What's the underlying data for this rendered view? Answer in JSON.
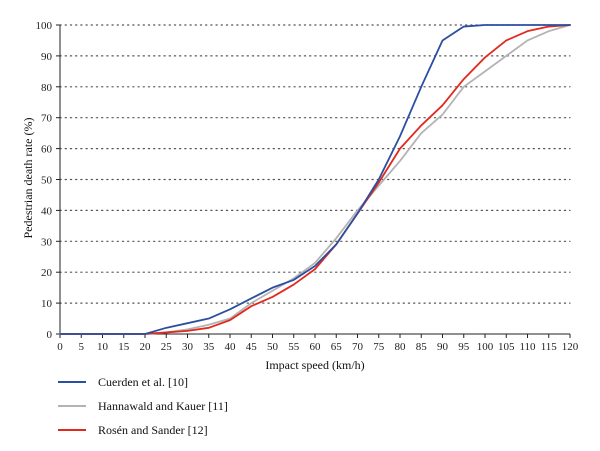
{
  "chart_data": {
    "type": "line",
    "xlabel": "Impact speed (km/h)",
    "ylabel": "Pedestrian death rate (%)",
    "xlim": [
      0,
      120
    ],
    "ylim": [
      0,
      100
    ],
    "x_ticks": [
      0,
      5,
      10,
      15,
      20,
      25,
      30,
      35,
      40,
      45,
      50,
      55,
      60,
      65,
      70,
      75,
      80,
      85,
      90,
      95,
      100,
      105,
      110,
      115,
      120
    ],
    "y_ticks": [
      0,
      10,
      20,
      30,
      40,
      50,
      60,
      70,
      80,
      90,
      100
    ],
    "grid": "horizontal dotted",
    "legend_position": "bottom-left",
    "series": [
      {
        "name": "Cuerden et al. [10]",
        "color": "#2b4fa0",
        "x": [
          0,
          5,
          10,
          15,
          20,
          25,
          30,
          35,
          40,
          45,
          50,
          55,
          60,
          65,
          70,
          75,
          80,
          85,
          90,
          95,
          100,
          105,
          110,
          115,
          120
        ],
        "values": [
          0,
          0,
          0,
          0,
          0,
          2,
          3.5,
          5,
          8,
          11.5,
          15,
          17.5,
          22,
          29,
          39,
          50,
          64,
          80,
          95,
          99.5,
          100,
          100,
          100,
          100,
          100
        ]
      },
      {
        "name": "Hannawald and Kauer [11]",
        "color": "#b3b3b3",
        "x": [
          0,
          5,
          10,
          15,
          20,
          25,
          30,
          35,
          40,
          45,
          50,
          55,
          60,
          65,
          70,
          75,
          80,
          85,
          90,
          95,
          100,
          105,
          110,
          115,
          120
        ],
        "values": [
          0,
          0,
          0,
          0,
          0,
          0.5,
          1.5,
          3,
          5,
          10,
          14,
          18,
          23,
          31,
          40,
          48,
          56,
          65,
          71,
          80,
          85,
          90,
          95,
          98,
          100
        ]
      },
      {
        "name": "Rosén and Sander [12]",
        "color": "#e02a1f",
        "x": [
          0,
          5,
          10,
          15,
          20,
          25,
          30,
          35,
          40,
          45,
          50,
          55,
          60,
          65,
          70,
          75,
          80,
          85,
          90,
          95,
          100,
          105,
          110,
          115,
          120
        ],
        "values": [
          0,
          0,
          0,
          0,
          0,
          0.5,
          1,
          2,
          4.5,
          9,
          12,
          16,
          21,
          29,
          39,
          49,
          60,
          67.5,
          74,
          82.5,
          89.5,
          95,
          98,
          99.5,
          100
        ]
      }
    ]
  }
}
